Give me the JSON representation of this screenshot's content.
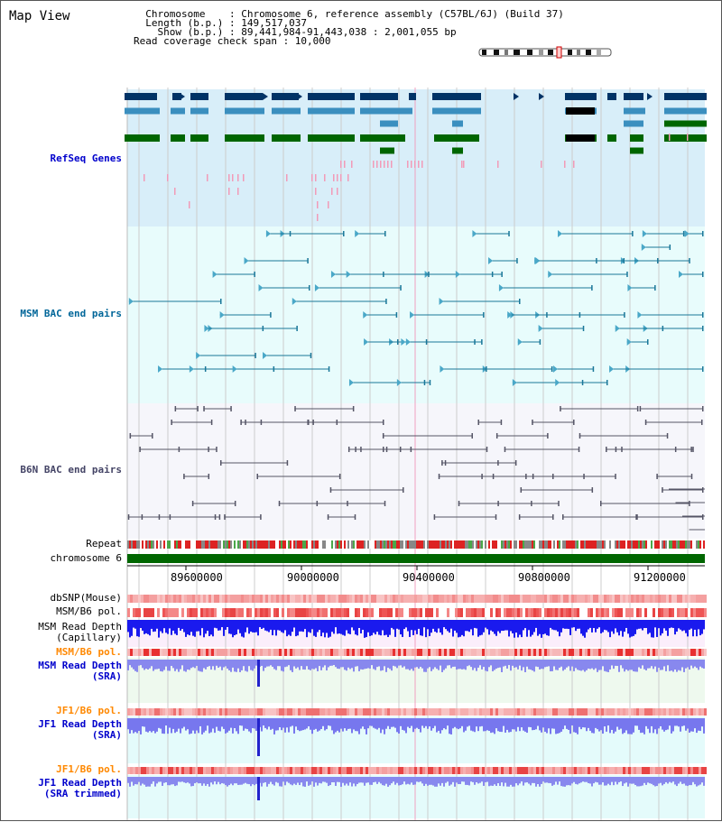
{
  "title": "Map View",
  "header": {
    "lines": [
      "  Chromosome    : Chromosome 6, reference assembly (C57BL/6J) (Build 37)",
      "  Length (b.p.) : 149,517,037",
      "    Show (b.p.) : 89,441,984-91,443,038 : 2,001,055 bp",
      "Read coverage check span : 10,000"
    ]
  },
  "tracks": {
    "refseq": "RefSeq Genes",
    "msm_bac": "MSM BAC end pairs",
    "b6n_bac": "B6N BAC end pairs",
    "repeat": "Repeat",
    "chromosome": "chromosome 6",
    "dbsnp": "dbSNP(Mouse)",
    "msm_b6_pol_1": "MSM/B6 pol.",
    "msm_depth_cap_1": "MSM Read Depth",
    "msm_depth_cap_2": "(Capillary)",
    "msm_b6_pol_2": "MSM/B6 pol.",
    "msm_depth_sra_1": "MSM Read Depth",
    "msm_depth_sra_2": "(SRA)",
    "jf1_b6_pol_1": "JF1/B6 pol.",
    "jf1_depth_sra_1": "JF1 Read Depth",
    "jf1_depth_sra_2": "(SRA)",
    "jf1_b6_pol_2": "JF1/B6 pol.",
    "jf1_depth_trim_1": "JF1 Read Depth",
    "jf1_depth_trim_2": "(SRA trimmed)"
  },
  "axis": {
    "ticks": [
      "89600000",
      "90000000",
      "90400000",
      "90800000",
      "91200000"
    ]
  },
  "colors": {
    "refseq_label": "#0000cc",
    "msm_label": "#006699",
    "b6n_label": "#444466",
    "pol_msm_label": "#ff8800",
    "pol_jf1_label": "#ff8800",
    "depth_label": "#0000cc",
    "refseq_bg": "#d8eef9",
    "msm_bg": "#e8fcfc",
    "b6n_bg": "#f6f6fb",
    "gene_navy": "#003366",
    "gene_steel": "#3b8fbf",
    "gene_green": "#006600",
    "chrom_green": "#006600"
  }
}
